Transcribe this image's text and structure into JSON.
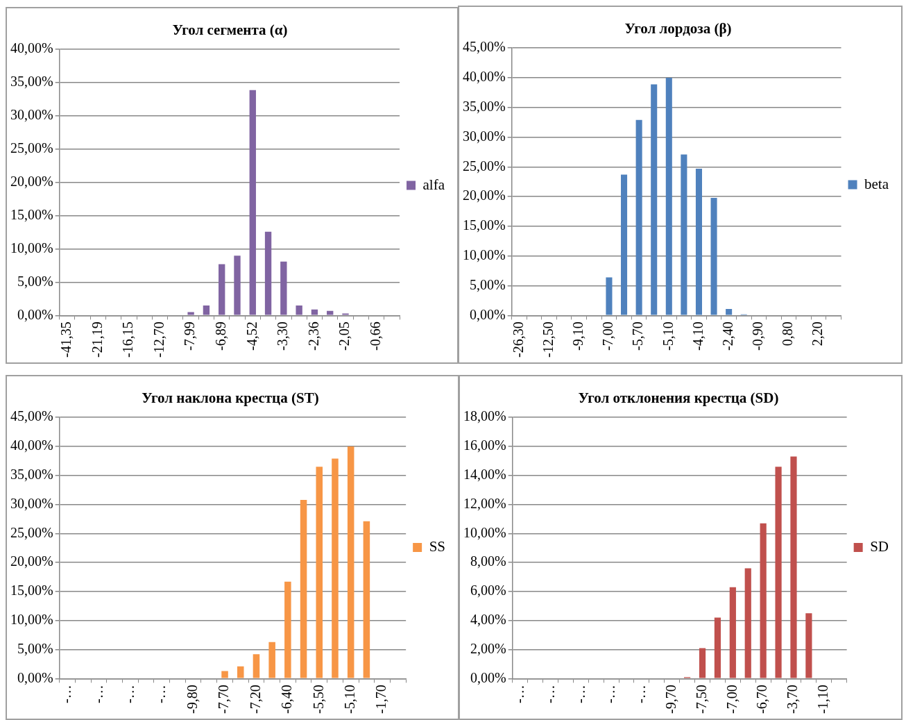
{
  "chart_data": [
    {
      "type": "bar",
      "title": "Угол сегмента (α)",
      "categories": [
        "-41,35",
        null,
        "-21,19",
        null,
        "-16,15",
        null,
        "-12,70",
        null,
        "-7,99",
        null,
        "-6,89",
        null,
        "-4,52",
        null,
        "-3,30",
        null,
        "-2,36",
        null,
        "-2,05",
        null,
        "-0,66",
        null
      ],
      "series": [
        {
          "name": "alfa",
          "color": "#8064a2",
          "values": [
            0,
            0,
            0,
            0,
            0,
            0,
            0,
            0,
            0.5,
            1.5,
            7.7,
            9.0,
            33.9,
            12.6,
            8.1,
            1.5,
            0.9,
            0.7,
            0.3,
            0,
            0,
            0
          ]
        }
      ],
      "ylim": [
        0,
        40
      ],
      "yticks": [
        {
          "value": 0,
          "label": "0,00%"
        },
        {
          "value": 5,
          "label": "5,00%"
        },
        {
          "value": 10,
          "label": "10,00%"
        },
        {
          "value": 15,
          "label": "15,00%"
        },
        {
          "value": 20,
          "label": "20,00%"
        },
        {
          "value": 25,
          "label": "25,00%"
        },
        {
          "value": 30,
          "label": "30,00%"
        },
        {
          "value": 35,
          "label": "35,00%"
        },
        {
          "value": 40,
          "label": "40,00%"
        }
      ],
      "grid": "y",
      "legend": "right"
    },
    {
      "type": "bar",
      "title": "Угол лордоза (β)",
      "categories": [
        "-26,30",
        null,
        "-12,50",
        null,
        "-9,10",
        null,
        "-7,00",
        null,
        "-5,70",
        null,
        "-5,10",
        null,
        "-4,10",
        null,
        "-2,40",
        null,
        "-0,90",
        null,
        "0,80",
        null,
        "2,20",
        null
      ],
      "series": [
        {
          "name": "beta",
          "color": "#4f81bd",
          "values": [
            0,
            0,
            0,
            0,
            0,
            0,
            6.4,
            23.7,
            32.9,
            38.9,
            40,
            27.1,
            24.7,
            19.8,
            1.1,
            0.2,
            0,
            0,
            0,
            0,
            0,
            0
          ]
        }
      ],
      "ylim": [
        0,
        45
      ],
      "yticks": [
        {
          "value": 0,
          "label": "0,00%"
        },
        {
          "value": 5,
          "label": "5,00%"
        },
        {
          "value": 10,
          "label": "10,00%"
        },
        {
          "value": 15,
          "label": "15,00%"
        },
        {
          "value": 20,
          "label": "20,00%"
        },
        {
          "value": 25,
          "label": "25,00%"
        },
        {
          "value": 30,
          "label": "30,00%"
        },
        {
          "value": 35,
          "label": "35,00%"
        },
        {
          "value": 40,
          "label": "40,00%"
        },
        {
          "value": 45,
          "label": "45,00%"
        }
      ],
      "grid": "y",
      "legend": "right"
    },
    {
      "type": "bar",
      "title": "Угол наклона крестца (ST)",
      "categories": [
        "-…",
        null,
        "-…",
        null,
        "-…",
        null,
        "-…",
        null,
        "-9,80",
        null,
        "-7,70",
        null,
        "-7,20",
        null,
        "-6,40",
        null,
        "-5,50",
        null,
        "-5,10",
        null,
        "-1,70",
        null
      ],
      "series": [
        {
          "name": "SS",
          "color": "#f79646",
          "values": [
            0,
            0,
            0,
            0,
            0,
            0,
            0,
            0,
            0,
            0,
            1.3,
            2.1,
            4.2,
            6.3,
            16.7,
            30.8,
            36.5,
            37.9,
            40,
            27.1,
            0,
            0
          ]
        }
      ],
      "ylim": [
        0,
        45
      ],
      "yticks": [
        {
          "value": 0,
          "label": "0,00%"
        },
        {
          "value": 5,
          "label": "5,00%"
        },
        {
          "value": 10,
          "label": "10,00%"
        },
        {
          "value": 15,
          "label": "15,00%"
        },
        {
          "value": 20,
          "label": "20,00%"
        },
        {
          "value": 25,
          "label": "25,00%"
        },
        {
          "value": 30,
          "label": "30,00%"
        },
        {
          "value": 35,
          "label": "35,00%"
        },
        {
          "value": 40,
          "label": "40,00%"
        },
        {
          "value": 45,
          "label": "45,00%"
        }
      ],
      "grid": "y",
      "legend": "right"
    },
    {
      "type": "bar",
      "title": "Угол отклонения крестца (SD)",
      "categories": [
        "-…",
        null,
        "-…",
        null,
        "-…",
        null,
        "-…",
        null,
        "-…",
        null,
        "-9,70",
        null,
        "-7,50",
        null,
        "-7,00",
        null,
        "-6,70",
        null,
        "-3,70",
        null,
        "-1,10",
        null
      ],
      "series": [
        {
          "name": "SD",
          "color": "#c0504d",
          "values": [
            0,
            0,
            0,
            0,
            0,
            0,
            0,
            0,
            0,
            0,
            0,
            0.1,
            2.1,
            4.2,
            6.3,
            7.6,
            10.7,
            14.6,
            15.3,
            4.5,
            0,
            0
          ]
        }
      ],
      "ylim": [
        0,
        18
      ],
      "yticks": [
        {
          "value": 0,
          "label": "0,00%"
        },
        {
          "value": 2,
          "label": "2,00%"
        },
        {
          "value": 4,
          "label": "4,00%"
        },
        {
          "value": 6,
          "label": "6,00%"
        },
        {
          "value": 8,
          "label": "8,00%"
        },
        {
          "value": 10,
          "label": "10,00%"
        },
        {
          "value": 12,
          "label": "12,00%"
        },
        {
          "value": 14,
          "label": "14,00%"
        },
        {
          "value": 16,
          "label": "16,00%"
        },
        {
          "value": 18,
          "label": "18,00%"
        }
      ],
      "grid": "y",
      "legend": "right"
    }
  ]
}
